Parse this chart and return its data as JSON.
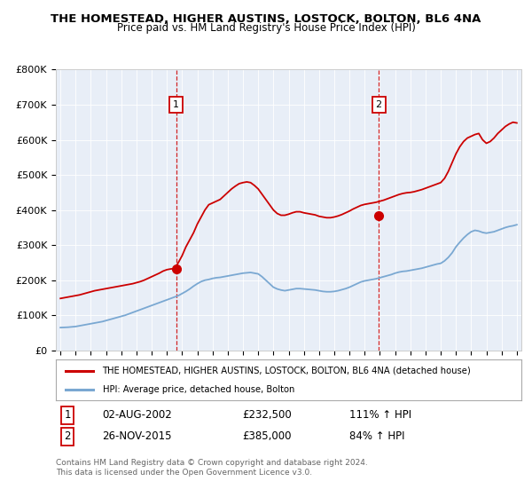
{
  "title": "THE HOMESTEAD, HIGHER AUSTINS, LOSTOCK, BOLTON, BL6 4NA",
  "subtitle": "Price paid vs. HM Land Registry's House Price Index (HPI)",
  "ylabel_ticks": [
    "£0",
    "£100K",
    "£200K",
    "£300K",
    "£400K",
    "£500K",
    "£600K",
    "£700K",
    "£800K"
  ],
  "ytick_values": [
    0,
    100000,
    200000,
    300000,
    400000,
    500000,
    600000,
    700000,
    800000
  ],
  "ylim": [
    0,
    800000
  ],
  "xlim_start": 1994.7,
  "xlim_end": 2025.3,
  "bg_color": "#e8eef7",
  "red_color": "#cc0000",
  "blue_color": "#7aa8d2",
  "sale1_x": 2002.6,
  "sale1_y": 232500,
  "sale2_x": 2015.92,
  "sale2_y": 385000,
  "sale1_label": "1",
  "sale2_label": "2",
  "sale1_date": "02-AUG-2002",
  "sale1_price": "£232,500",
  "sale1_hpi": "111% ↑ HPI",
  "sale2_date": "26-NOV-2015",
  "sale2_price": "£385,000",
  "sale2_hpi": "84% ↑ HPI",
  "legend_line1": "THE HOMESTEAD, HIGHER AUSTINS, LOSTOCK, BOLTON, BL6 4NA (detached house)",
  "legend_line2": "HPI: Average price, detached house, Bolton",
  "footer1": "Contains HM Land Registry data © Crown copyright and database right 2024.",
  "footer2": "This data is licensed under the Open Government Licence v3.0.",
  "hpi_years": [
    1995.0,
    1995.25,
    1995.5,
    1995.75,
    1996.0,
    1996.25,
    1996.5,
    1996.75,
    1997.0,
    1997.25,
    1997.5,
    1997.75,
    1998.0,
    1998.25,
    1998.5,
    1998.75,
    1999.0,
    1999.25,
    1999.5,
    1999.75,
    2000.0,
    2000.25,
    2000.5,
    2000.75,
    2001.0,
    2001.25,
    2001.5,
    2001.75,
    2002.0,
    2002.25,
    2002.5,
    2002.75,
    2003.0,
    2003.25,
    2003.5,
    2003.75,
    2004.0,
    2004.25,
    2004.5,
    2004.75,
    2005.0,
    2005.25,
    2005.5,
    2005.75,
    2006.0,
    2006.25,
    2006.5,
    2006.75,
    2007.0,
    2007.25,
    2007.5,
    2007.75,
    2008.0,
    2008.25,
    2008.5,
    2008.75,
    2009.0,
    2009.25,
    2009.5,
    2009.75,
    2010.0,
    2010.25,
    2010.5,
    2010.75,
    2011.0,
    2011.25,
    2011.5,
    2011.75,
    2012.0,
    2012.25,
    2012.5,
    2012.75,
    2013.0,
    2013.25,
    2013.5,
    2013.75,
    2014.0,
    2014.25,
    2014.5,
    2014.75,
    2015.0,
    2015.25,
    2015.5,
    2015.75,
    2016.0,
    2016.25,
    2016.5,
    2016.75,
    2017.0,
    2017.25,
    2017.5,
    2017.75,
    2018.0,
    2018.25,
    2018.5,
    2018.75,
    2019.0,
    2019.25,
    2019.5,
    2019.75,
    2020.0,
    2020.25,
    2020.5,
    2020.75,
    2021.0,
    2021.25,
    2021.5,
    2021.75,
    2022.0,
    2022.25,
    2022.5,
    2022.75,
    2023.0,
    2023.25,
    2023.5,
    2023.75,
    2024.0,
    2024.25,
    2024.5,
    2024.75,
    2025.0
  ],
  "hpi_values": [
    65000,
    65500,
    66000,
    67000,
    68000,
    70000,
    72000,
    74000,
    76000,
    78000,
    80000,
    82000,
    85000,
    88000,
    91000,
    94000,
    97000,
    100000,
    104000,
    108000,
    112000,
    116000,
    120000,
    124000,
    128000,
    132000,
    136000,
    140000,
    144000,
    148000,
    152000,
    156000,
    162000,
    168000,
    175000,
    183000,
    190000,
    196000,
    200000,
    202000,
    205000,
    207000,
    208000,
    210000,
    212000,
    214000,
    216000,
    218000,
    220000,
    221000,
    222000,
    220000,
    218000,
    210000,
    200000,
    190000,
    180000,
    175000,
    172000,
    170000,
    172000,
    174000,
    176000,
    176000,
    175000,
    174000,
    173000,
    172000,
    170000,
    168000,
    167000,
    167000,
    168000,
    170000,
    173000,
    176000,
    180000,
    185000,
    190000,
    195000,
    198000,
    200000,
    202000,
    204000,
    207000,
    210000,
    213000,
    216000,
    220000,
    223000,
    225000,
    226000,
    228000,
    230000,
    232000,
    234000,
    237000,
    240000,
    243000,
    246000,
    248000,
    255000,
    265000,
    278000,
    295000,
    308000,
    320000,
    330000,
    338000,
    342000,
    340000,
    336000,
    334000,
    336000,
    338000,
    342000,
    346000,
    350000,
    353000,
    355000,
    358000
  ],
  "red_years": [
    1995.0,
    1995.25,
    1995.5,
    1995.75,
    1996.0,
    1996.25,
    1996.5,
    1996.75,
    1997.0,
    1997.25,
    1997.5,
    1997.75,
    1998.0,
    1998.25,
    1998.5,
    1998.75,
    1999.0,
    1999.25,
    1999.5,
    1999.75,
    2000.0,
    2000.25,
    2000.5,
    2000.75,
    2001.0,
    2001.25,
    2001.5,
    2001.75,
    2002.0,
    2002.25,
    2002.5,
    2002.75,
    2003.0,
    2003.25,
    2003.5,
    2003.75,
    2004.0,
    2004.25,
    2004.5,
    2004.75,
    2005.0,
    2005.25,
    2005.5,
    2005.75,
    2006.0,
    2006.25,
    2006.5,
    2006.75,
    2007.0,
    2007.25,
    2007.5,
    2007.75,
    2008.0,
    2008.25,
    2008.5,
    2008.75,
    2009.0,
    2009.25,
    2009.5,
    2009.75,
    2010.0,
    2010.25,
    2010.5,
    2010.75,
    2011.0,
    2011.25,
    2011.5,
    2011.75,
    2012.0,
    2012.25,
    2012.5,
    2012.75,
    2013.0,
    2013.25,
    2013.5,
    2013.75,
    2014.0,
    2014.25,
    2014.5,
    2014.75,
    2015.0,
    2015.25,
    2015.5,
    2015.75,
    2016.0,
    2016.25,
    2016.5,
    2016.75,
    2017.0,
    2017.25,
    2017.5,
    2017.75,
    2018.0,
    2018.25,
    2018.5,
    2018.75,
    2019.0,
    2019.25,
    2019.5,
    2019.75,
    2020.0,
    2020.25,
    2020.5,
    2020.75,
    2021.0,
    2021.25,
    2021.5,
    2021.75,
    2022.0,
    2022.25,
    2022.5,
    2022.75,
    2023.0,
    2023.25,
    2023.5,
    2023.75,
    2024.0,
    2024.25,
    2024.5,
    2024.75,
    2025.0
  ],
  "red_values": [
    148000,
    150000,
    152000,
    154000,
    156000,
    158000,
    161000,
    164000,
    167000,
    170000,
    172000,
    174000,
    176000,
    178000,
    180000,
    182000,
    184000,
    186000,
    188000,
    190000,
    193000,
    196000,
    200000,
    205000,
    210000,
    215000,
    220000,
    226000,
    230000,
    232000,
    233000,
    250000,
    270000,
    295000,
    315000,
    335000,
    360000,
    380000,
    400000,
    415000,
    420000,
    425000,
    430000,
    440000,
    450000,
    460000,
    468000,
    475000,
    478000,
    480000,
    478000,
    470000,
    460000,
    445000,
    430000,
    415000,
    400000,
    390000,
    385000,
    385000,
    388000,
    392000,
    395000,
    395000,
    392000,
    390000,
    388000,
    386000,
    382000,
    380000,
    378000,
    378000,
    380000,
    383000,
    387000,
    392000,
    397000,
    403000,
    408000,
    413000,
    416000,
    418000,
    420000,
    422000,
    425000,
    428000,
    432000,
    436000,
    440000,
    444000,
    447000,
    449000,
    450000,
    452000,
    455000,
    458000,
    462000,
    466000,
    470000,
    474000,
    478000,
    490000,
    510000,
    535000,
    560000,
    580000,
    595000,
    605000,
    610000,
    615000,
    618000,
    600000,
    590000,
    595000,
    605000,
    618000,
    628000,
    638000,
    645000,
    650000,
    648000
  ]
}
